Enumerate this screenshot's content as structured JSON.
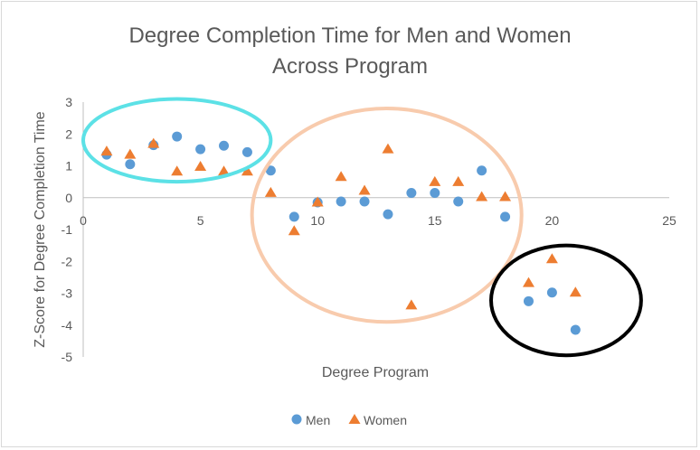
{
  "chart_data": {
    "type": "scatter",
    "title_lines": [
      "Degree Completion Time for Men and Women",
      "Across Program"
    ],
    "xlabel": "Degree Program",
    "ylabel": "Z-Score for Degree Completion Time",
    "xlim": [
      0,
      25
    ],
    "ylim": [
      -5,
      3
    ],
    "x_ticks": [
      0,
      5,
      10,
      15,
      20,
      25
    ],
    "y_ticks": [
      3,
      2,
      1,
      0,
      -1,
      -2,
      -3,
      -4,
      -5
    ],
    "grid": "none",
    "legend_position": "bottom",
    "series": [
      {
        "name": "Men",
        "marker": "circle",
        "color": "#5b9bd5",
        "points": [
          [
            1,
            1.35
          ],
          [
            2,
            1.05
          ],
          [
            3,
            1.65
          ],
          [
            4,
            1.92
          ],
          [
            5,
            1.52
          ],
          [
            6,
            1.63
          ],
          [
            7,
            1.43
          ],
          [
            8,
            0.85
          ],
          [
            9,
            -0.6
          ],
          [
            10,
            -0.15
          ],
          [
            11,
            -0.12
          ],
          [
            12,
            -0.12
          ],
          [
            13,
            -0.52
          ],
          [
            14,
            0.15
          ],
          [
            15,
            0.15
          ],
          [
            16,
            -0.12
          ],
          [
            17,
            0.85
          ],
          [
            18,
            -0.6
          ],
          [
            19,
            -3.25
          ],
          [
            20,
            -2.98
          ],
          [
            21,
            -4.15
          ]
        ]
      },
      {
        "name": "Women",
        "marker": "triangle",
        "color": "#ed7d31",
        "points": [
          [
            1,
            1.48
          ],
          [
            2,
            1.38
          ],
          [
            3,
            1.72
          ],
          [
            4,
            0.85
          ],
          [
            5,
            1.0
          ],
          [
            6,
            0.85
          ],
          [
            7,
            0.85
          ],
          [
            8,
            0.18
          ],
          [
            9,
            -1.02
          ],
          [
            10,
            -0.12
          ],
          [
            11,
            0.68
          ],
          [
            12,
            0.25
          ],
          [
            13,
            1.55
          ],
          [
            14,
            -3.35
          ],
          [
            15,
            0.52
          ],
          [
            16,
            0.52
          ],
          [
            17,
            0.05
          ],
          [
            18,
            0.05
          ],
          [
            19,
            -2.65
          ],
          [
            20,
            -1.9
          ],
          [
            21,
            -2.95
          ]
        ]
      }
    ],
    "annotations": [
      {
        "shape": "ellipse",
        "color": "#5ce1e6",
        "x_range": [
          0,
          8
        ],
        "y_range": [
          0.5,
          3.1
        ]
      },
      {
        "shape": "ellipse",
        "color": "#f8cbad",
        "x_range": [
          7.2,
          18.7
        ],
        "y_range": [
          -3.9,
          2.8
        ]
      },
      {
        "shape": "ellipse",
        "color": "#000000",
        "x_range": [
          17.4,
          23.8
        ],
        "y_range": [
          -4.95,
          -1.5
        ]
      }
    ]
  }
}
